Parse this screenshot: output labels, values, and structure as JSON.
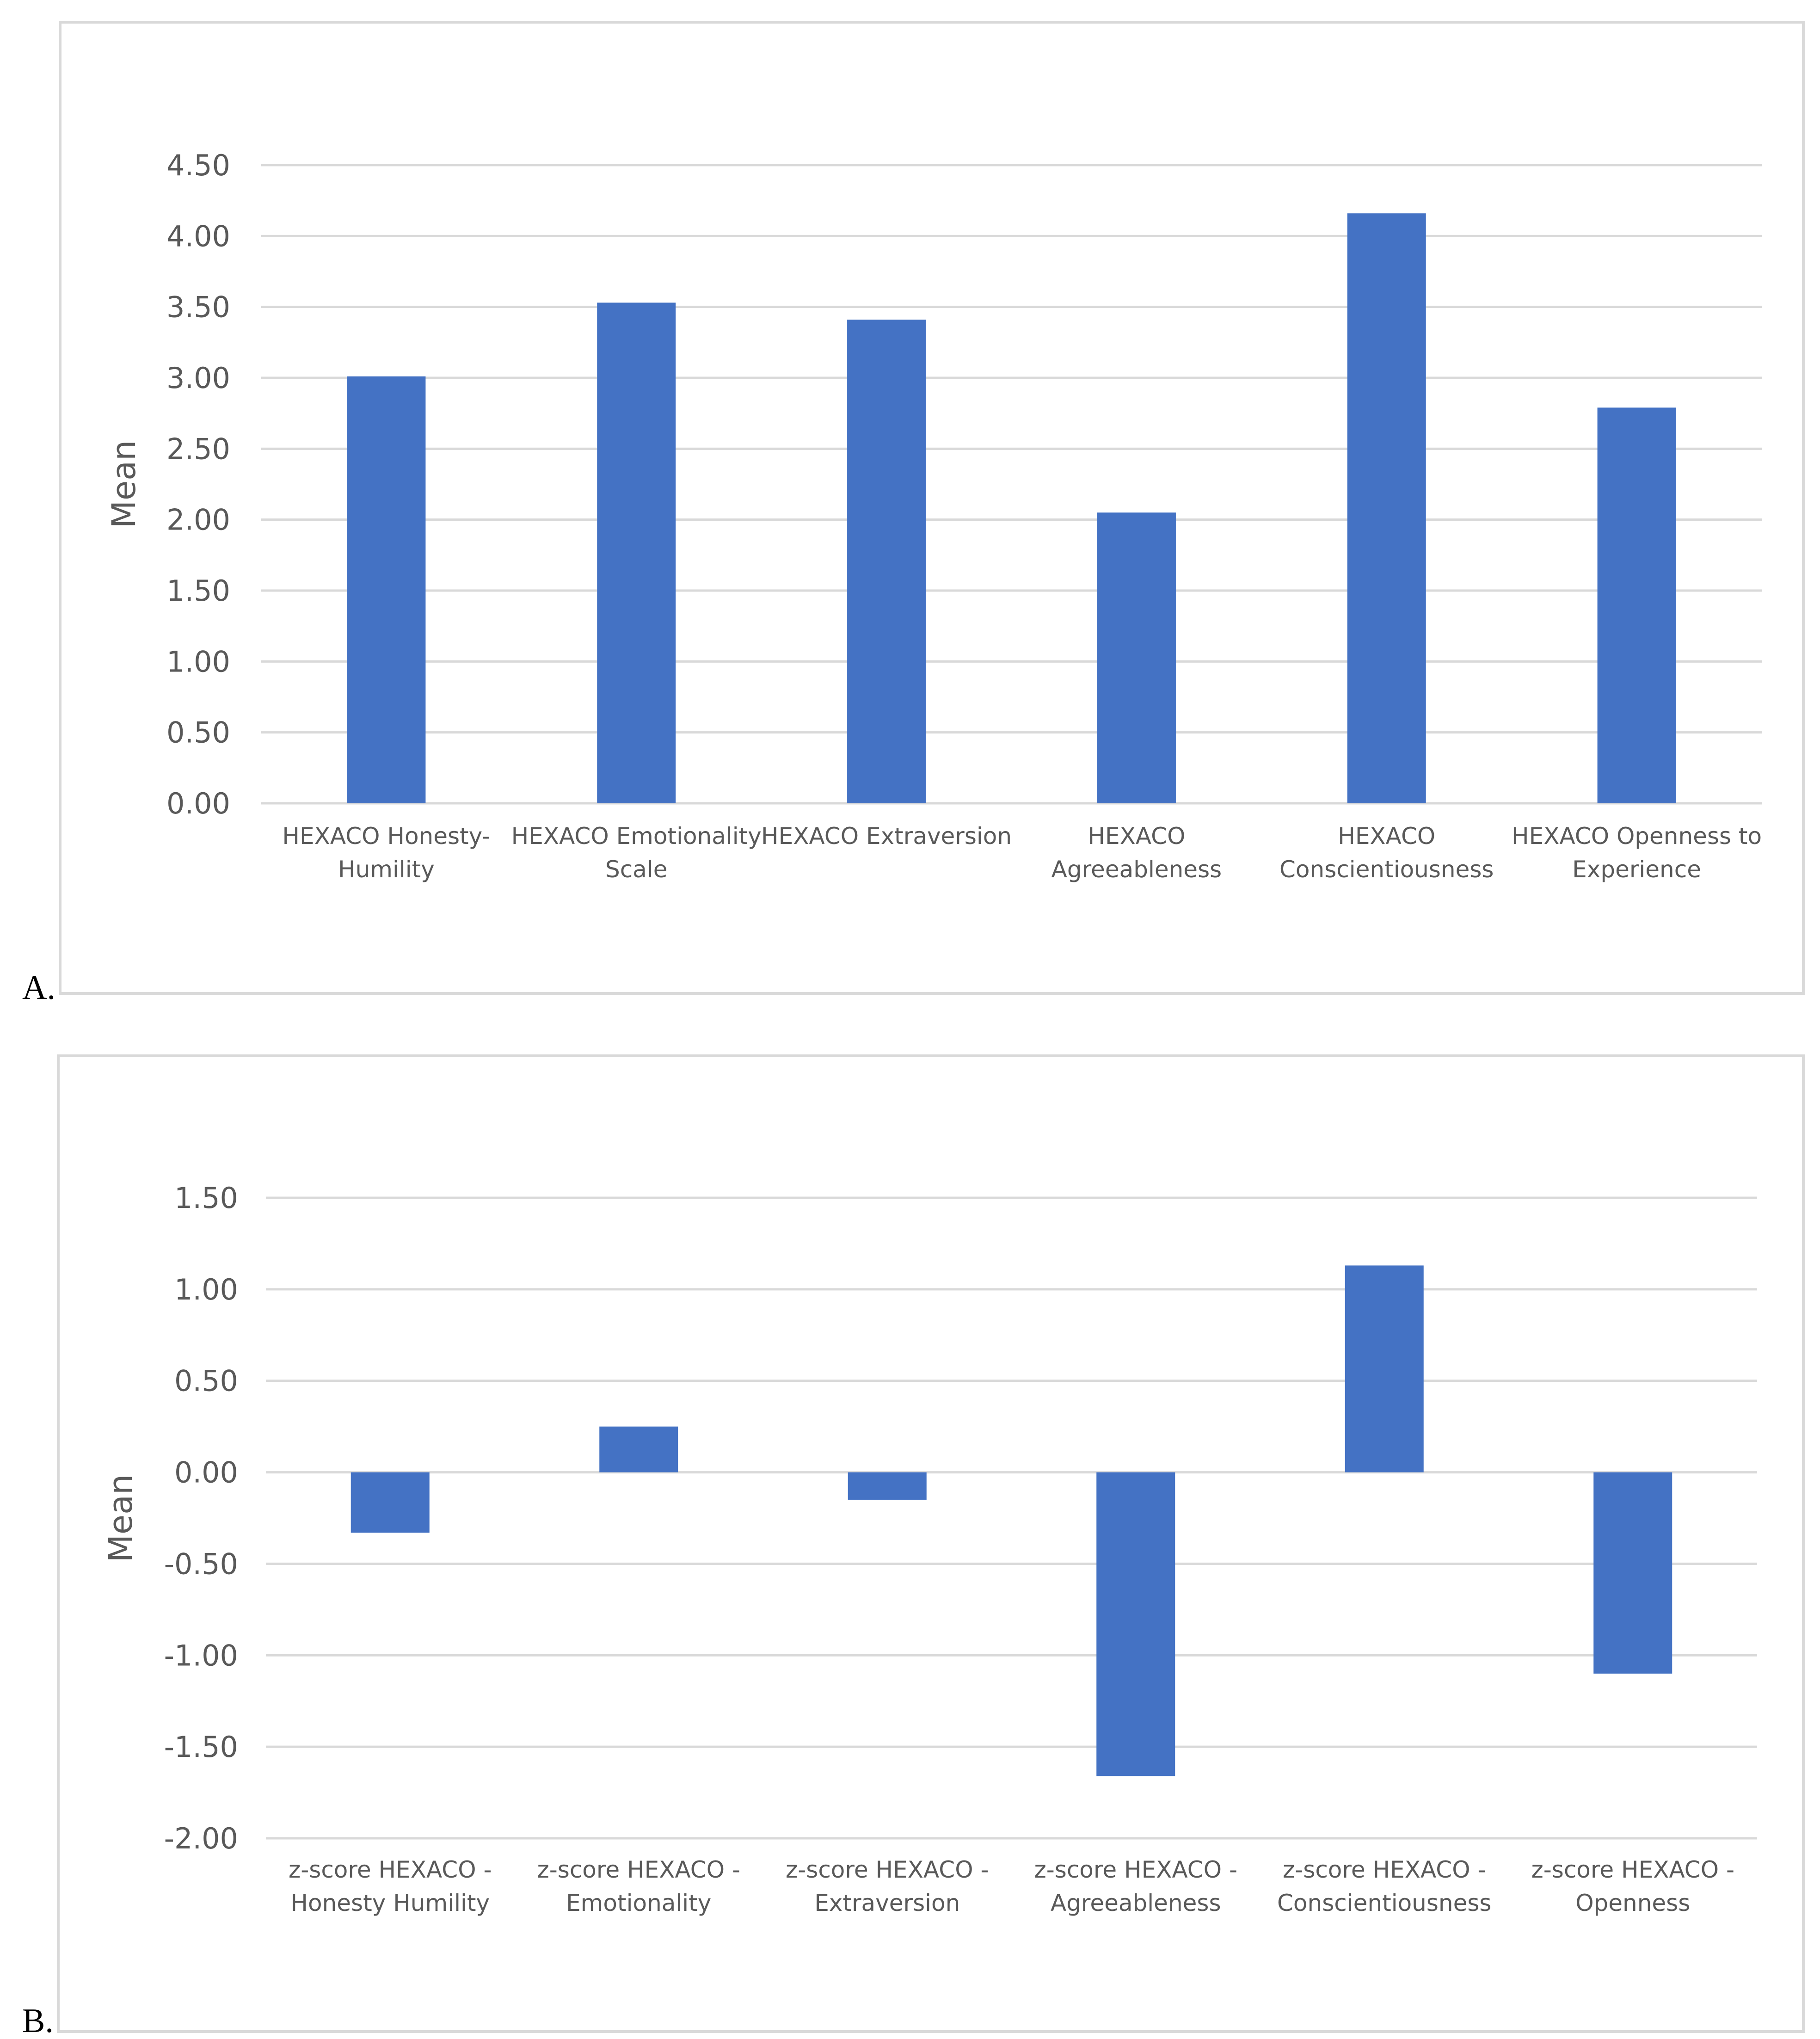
{
  "panels": [
    {
      "letter": "A."
    },
    {
      "letter": "B."
    }
  ],
  "chart_data": [
    {
      "type": "bar",
      "ylabel": "Mean",
      "xlabel": "",
      "ylim": [
        0,
        4.5
      ],
      "yticks": [
        "0.00",
        "0.50",
        "1.00",
        "1.50",
        "2.00",
        "2.50",
        "3.00",
        "3.50",
        "4.00",
        "4.50"
      ],
      "grid": true,
      "bar_color": "#4472c4",
      "categories": [
        [
          "HEXACO Honesty-",
          "Humility"
        ],
        [
          "HEXACO Emotionality",
          "Scale"
        ],
        [
          "HEXACO Extraversion"
        ],
        [
          "HEXACO",
          "Agreeableness"
        ],
        [
          "HEXACO",
          "Conscientiousness"
        ],
        [
          "HEXACO Openness to",
          "Experience"
        ]
      ],
      "values": [
        3.01,
        3.53,
        3.41,
        2.05,
        4.16,
        2.79
      ]
    },
    {
      "type": "bar",
      "ylabel": "Mean",
      "xlabel": "",
      "ylim": [
        -2.0,
        1.5
      ],
      "yticks": [
        "-2.00",
        "-1.50",
        "-1.00",
        "-0.50",
        "0.00",
        "0.50",
        "1.00",
        "1.50"
      ],
      "grid": true,
      "bar_color": "#4472c4",
      "categories": [
        [
          "z-score HEXACO -",
          "Honesty Humility"
        ],
        [
          "z-score HEXACO -",
          "Emotionality"
        ],
        [
          "z-score HEXACO -",
          "Extraversion"
        ],
        [
          "z-score HEXACO -",
          "Agreeableness"
        ],
        [
          "z-score HEXACO -",
          "Conscientiousness"
        ],
        [
          "z-score HEXACO -",
          "Openness"
        ]
      ],
      "values": [
        -0.33,
        0.25,
        -0.15,
        -1.66,
        1.13,
        -1.1
      ]
    }
  ]
}
